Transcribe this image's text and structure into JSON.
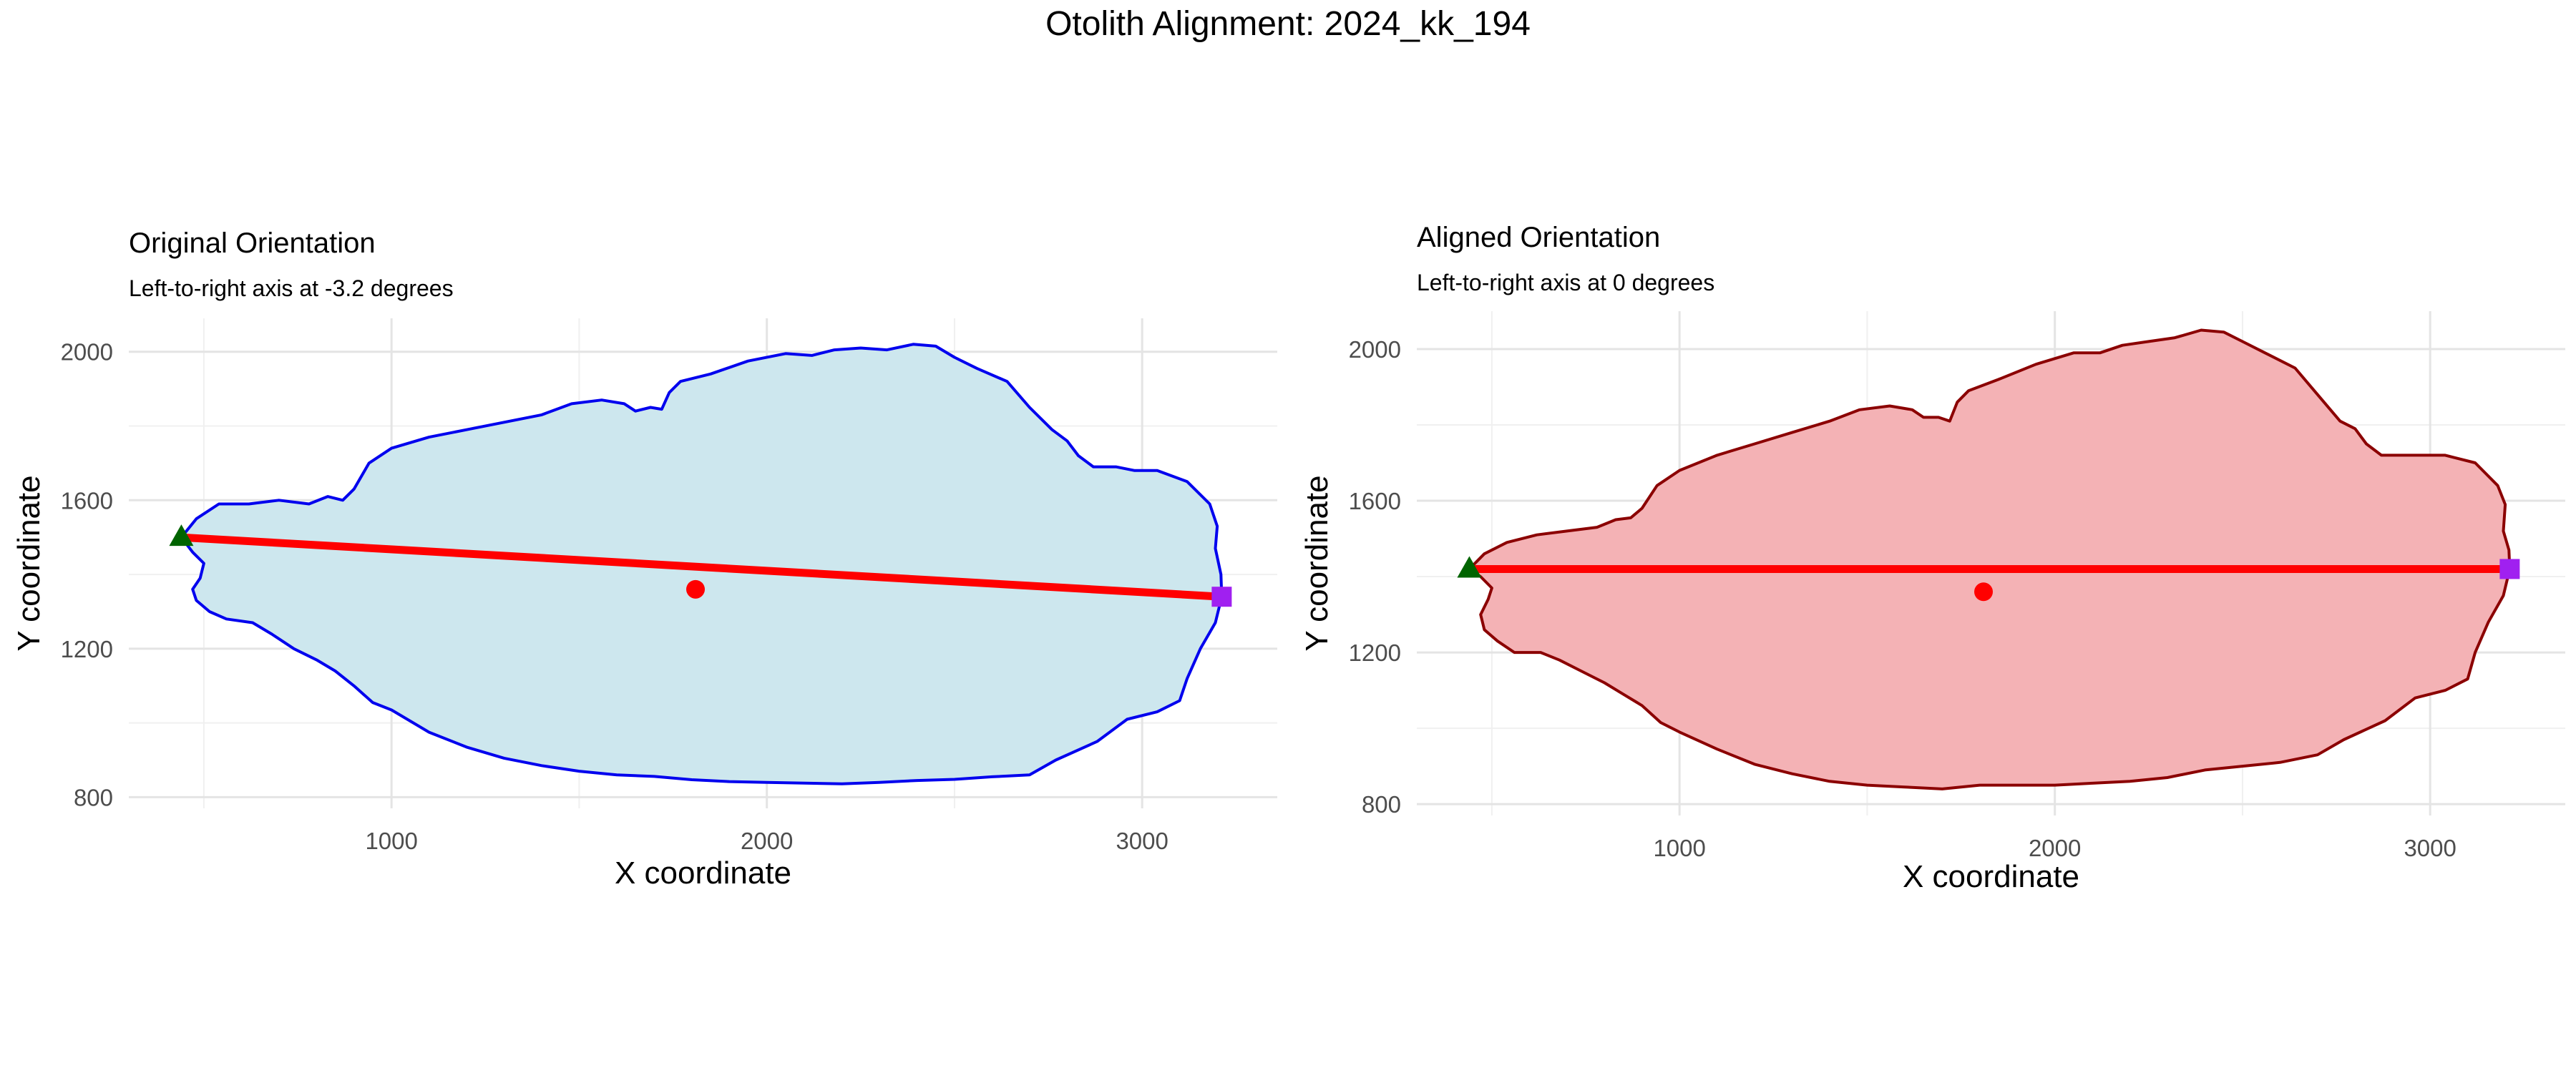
{
  "figure": {
    "title": "Otolith Alignment: 2024_kk_194"
  },
  "chart_data": [
    {
      "type": "line",
      "title": "Original Orientation",
      "subtitle": "Left-to-right axis at -3.2 degrees",
      "xlabel": "X coordinate",
      "ylabel": "Y coordinate",
      "xlim": [
        300,
        3360
      ],
      "ylim": [
        770,
        2090
      ],
      "x_major_ticks": [
        1000,
        2000,
        3000
      ],
      "x_tick_labels": [
        "1000",
        "2000",
        "3000"
      ],
      "x_minor_ticks": [
        500,
        1500,
        2500
      ],
      "y_major_ticks": [
        800,
        1200,
        1600,
        2000
      ],
      "y_tick_labels": [
        "800",
        "1200",
        "1600",
        "2000"
      ],
      "y_minor_ticks": [
        1000,
        1400,
        1800
      ],
      "grid": true,
      "outline": {
        "fill": "#cde7ee",
        "stroke": "#0000ee",
        "points": [
          [
            440,
            1500
          ],
          [
            480,
            1550
          ],
          [
            540,
            1590
          ],
          [
            620,
            1590
          ],
          [
            700,
            1600
          ],
          [
            780,
            1590
          ],
          [
            830,
            1610
          ],
          [
            870,
            1600
          ],
          [
            900,
            1630
          ],
          [
            940,
            1700
          ],
          [
            1000,
            1740
          ],
          [
            1100,
            1770
          ],
          [
            1200,
            1790
          ],
          [
            1300,
            1810
          ],
          [
            1400,
            1830
          ],
          [
            1480,
            1860
          ],
          [
            1560,
            1870
          ],
          [
            1620,
            1860
          ],
          [
            1650,
            1840
          ],
          [
            1690,
            1850
          ],
          [
            1720,
            1845
          ],
          [
            1740,
            1890
          ],
          [
            1770,
            1920
          ],
          [
            1850,
            1940
          ],
          [
            1950,
            1975
          ],
          [
            2050,
            1995
          ],
          [
            2120,
            1990
          ],
          [
            2180,
            2005
          ],
          [
            2250,
            2010
          ],
          [
            2320,
            2005
          ],
          [
            2390,
            2020
          ],
          [
            2450,
            2015
          ],
          [
            2500,
            1985
          ],
          [
            2560,
            1955
          ],
          [
            2640,
            1920
          ],
          [
            2700,
            1850
          ],
          [
            2760,
            1790
          ],
          [
            2800,
            1760
          ],
          [
            2830,
            1720
          ],
          [
            2870,
            1690
          ],
          [
            2930,
            1690
          ],
          [
            2980,
            1680
          ],
          [
            3040,
            1680
          ],
          [
            3120,
            1650
          ],
          [
            3180,
            1590
          ],
          [
            3200,
            1530
          ],
          [
            3195,
            1470
          ],
          [
            3210,
            1400
          ],
          [
            3212,
            1340
          ],
          [
            3195,
            1270
          ],
          [
            3155,
            1200
          ],
          [
            3120,
            1120
          ],
          [
            3100,
            1060
          ],
          [
            3040,
            1030
          ],
          [
            2960,
            1010
          ],
          [
            2880,
            950
          ],
          [
            2770,
            900
          ],
          [
            2700,
            860
          ],
          [
            2600,
            855
          ],
          [
            2500,
            848
          ],
          [
            2400,
            845
          ],
          [
            2300,
            840
          ],
          [
            2200,
            836
          ],
          [
            2100,
            838
          ],
          [
            2000,
            840
          ],
          [
            1900,
            842
          ],
          [
            1800,
            847
          ],
          [
            1700,
            856
          ],
          [
            1600,
            860
          ],
          [
            1500,
            870
          ],
          [
            1400,
            885
          ],
          [
            1300,
            905
          ],
          [
            1200,
            935
          ],
          [
            1100,
            975
          ],
          [
            1000,
            1035
          ],
          [
            950,
            1055
          ],
          [
            900,
            1100
          ],
          [
            850,
            1140
          ],
          [
            800,
            1170
          ],
          [
            740,
            1200
          ],
          [
            680,
            1240
          ],
          [
            630,
            1270
          ],
          [
            560,
            1280
          ],
          [
            515,
            1300
          ],
          [
            480,
            1330
          ],
          [
            470,
            1360
          ],
          [
            490,
            1390
          ],
          [
            500,
            1430
          ],
          [
            470,
            1460
          ],
          [
            440,
            1500
          ]
        ]
      },
      "axis_line": {
        "from": [
          440,
          1500
        ],
        "to": [
          3212,
          1340
        ],
        "color": "#ff0000"
      },
      "centroid": {
        "x": 1810,
        "y": 1360,
        "color": "#ff0000"
      },
      "left_point": {
        "x": 440,
        "y": 1500,
        "color": "#006400"
      },
      "right_point": {
        "x": 3212,
        "y": 1340,
        "color": "#a020f0"
      }
    },
    {
      "type": "line",
      "title": "Aligned Orientation",
      "subtitle": "Left-to-right axis at 0 degrees",
      "xlabel": "X coordinate",
      "ylabel": "Y coordinate",
      "xlim": [
        300,
        3360
      ],
      "ylim": [
        770,
        2100
      ],
      "x_major_ticks": [
        1000,
        2000,
        3000
      ],
      "x_tick_labels": [
        "1000",
        "2000",
        "3000"
      ],
      "x_minor_ticks": [
        500,
        1500,
        2500
      ],
      "y_major_ticks": [
        800,
        1200,
        1600,
        2000
      ],
      "y_tick_labels": [
        "800",
        "1200",
        "1600",
        "2000"
      ],
      "y_minor_ticks": [
        1000,
        1400,
        1800
      ],
      "grid": true,
      "outline": {
        "fill": "#f4b2b5",
        "stroke": "#8b0000",
        "points": [
          [
            440,
            1420
          ],
          [
            480,
            1460
          ],
          [
            540,
            1490
          ],
          [
            620,
            1510
          ],
          [
            700,
            1520
          ],
          [
            780,
            1530
          ],
          [
            830,
            1550
          ],
          [
            870,
            1555
          ],
          [
            900,
            1580
          ],
          [
            940,
            1640
          ],
          [
            1000,
            1680
          ],
          [
            1100,
            1720
          ],
          [
            1200,
            1750
          ],
          [
            1300,
            1780
          ],
          [
            1400,
            1810
          ],
          [
            1480,
            1840
          ],
          [
            1560,
            1850
          ],
          [
            1620,
            1840
          ],
          [
            1650,
            1820
          ],
          [
            1690,
            1820
          ],
          [
            1720,
            1810
          ],
          [
            1740,
            1860
          ],
          [
            1770,
            1890
          ],
          [
            1850,
            1920
          ],
          [
            1950,
            1960
          ],
          [
            2050,
            1990
          ],
          [
            2120,
            1990
          ],
          [
            2180,
            2010
          ],
          [
            2250,
            2020
          ],
          [
            2320,
            2030
          ],
          [
            2390,
            2050
          ],
          [
            2450,
            2045
          ],
          [
            2500,
            2020
          ],
          [
            2560,
            1990
          ],
          [
            2640,
            1950
          ],
          [
            2700,
            1880
          ],
          [
            2760,
            1810
          ],
          [
            2800,
            1790
          ],
          [
            2830,
            1750
          ],
          [
            2870,
            1720
          ],
          [
            2930,
            1720
          ],
          [
            2980,
            1720
          ],
          [
            3040,
            1720
          ],
          [
            3120,
            1700
          ],
          [
            3180,
            1640
          ],
          [
            3200,
            1590
          ],
          [
            3195,
            1520
          ],
          [
            3210,
            1470
          ],
          [
            3212,
            1420
          ],
          [
            3195,
            1350
          ],
          [
            3155,
            1280
          ],
          [
            3120,
            1200
          ],
          [
            3100,
            1130
          ],
          [
            3040,
            1100
          ],
          [
            2960,
            1080
          ],
          [
            2880,
            1020
          ],
          [
            2770,
            970
          ],
          [
            2700,
            930
          ],
          [
            2600,
            910
          ],
          [
            2500,
            900
          ],
          [
            2400,
            890
          ],
          [
            2300,
            870
          ],
          [
            2200,
            860
          ],
          [
            2100,
            855
          ],
          [
            2000,
            850
          ],
          [
            1900,
            850
          ],
          [
            1800,
            850
          ],
          [
            1700,
            840
          ],
          [
            1600,
            845
          ],
          [
            1500,
            850
          ],
          [
            1400,
            860
          ],
          [
            1300,
            880
          ],
          [
            1200,
            905
          ],
          [
            1100,
            945
          ],
          [
            1000,
            990
          ],
          [
            950,
            1015
          ],
          [
            900,
            1060
          ],
          [
            850,
            1090
          ],
          [
            800,
            1120
          ],
          [
            740,
            1150
          ],
          [
            680,
            1180
          ],
          [
            630,
            1200
          ],
          [
            560,
            1200
          ],
          [
            515,
            1230
          ],
          [
            480,
            1260
          ],
          [
            470,
            1300
          ],
          [
            490,
            1340
          ],
          [
            500,
            1370
          ],
          [
            470,
            1400
          ],
          [
            440,
            1420
          ]
        ]
      },
      "axis_line": {
        "from": [
          440,
          1420
        ],
        "to": [
          3212,
          1420
        ],
        "color": "#ff0000"
      },
      "centroid": {
        "x": 1810,
        "y": 1360,
        "color": "#ff0000"
      },
      "left_point": {
        "x": 440,
        "y": 1420,
        "color": "#006400"
      },
      "right_point": {
        "x": 3212,
        "y": 1420,
        "color": "#a020f0"
      }
    }
  ]
}
